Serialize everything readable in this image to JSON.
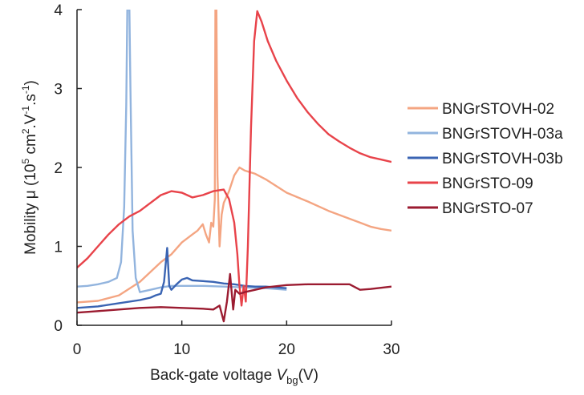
{
  "chart_data": {
    "type": "line",
    "xlabel_parts": {
      "main": "Back-gate voltage ",
      "var": "V",
      "sub": "bg",
      "unit": "(V)"
    },
    "ylabel_parts": {
      "main": "Mobility μ (10",
      "exp": "5",
      "mid": " cm",
      "exp2": "2",
      "mid2": ".V",
      "exp3": "-1",
      "mid3": ".s",
      "exp4": "-1",
      "end": ")"
    },
    "xlim": [
      0,
      30
    ],
    "ylim": [
      0,
      4
    ],
    "xticks": [
      0,
      10,
      20,
      30
    ],
    "yticks": [
      0,
      1,
      2,
      3,
      4
    ],
    "grid": false,
    "legend_position": "right",
    "series": [
      {
        "name": "BNGrSTOVH-02",
        "color": "#f4a582",
        "points": [
          [
            0,
            0.29
          ],
          [
            2,
            0.31
          ],
          [
            4,
            0.38
          ],
          [
            6,
            0.55
          ],
          [
            8,
            0.8
          ],
          [
            9,
            0.9
          ],
          [
            10,
            1.05
          ],
          [
            11,
            1.15
          ],
          [
            11.5,
            1.2
          ],
          [
            12,
            1.28
          ],
          [
            12.3,
            1.15
          ],
          [
            12.6,
            1.05
          ],
          [
            12.8,
            1.3
          ],
          [
            13.0,
            1.25
          ],
          [
            13.15,
            1.6
          ],
          [
            13.2,
            4.0
          ],
          [
            13.3,
            4.0
          ],
          [
            13.4,
            1.9
          ],
          [
            13.6,
            1.0
          ],
          [
            13.8,
            1.4
          ],
          [
            14,
            1.55
          ],
          [
            14.5,
            1.7
          ],
          [
            15,
            1.9
          ],
          [
            15.5,
            2.0
          ],
          [
            16,
            1.96
          ],
          [
            17,
            1.92
          ],
          [
            18,
            1.85
          ],
          [
            20,
            1.68
          ],
          [
            22,
            1.57
          ],
          [
            24,
            1.45
          ],
          [
            26,
            1.35
          ],
          [
            27,
            1.3
          ],
          [
            28,
            1.25
          ],
          [
            29,
            1.22
          ],
          [
            30,
            1.2
          ]
        ]
      },
      {
        "name": "BNGrSTOVH-03a",
        "color": "#92b4de",
        "points": [
          [
            0,
            0.49
          ],
          [
            1,
            0.5
          ],
          [
            2,
            0.52
          ],
          [
            3,
            0.55
          ],
          [
            3.8,
            0.6
          ],
          [
            4.2,
            0.8
          ],
          [
            4.5,
            1.5
          ],
          [
            4.7,
            2.8
          ],
          [
            4.8,
            4.0
          ],
          [
            5.0,
            4.0
          ],
          [
            5.1,
            3.0
          ],
          [
            5.3,
            1.2
          ],
          [
            5.6,
            0.6
          ],
          [
            6,
            0.42
          ],
          [
            7,
            0.45
          ],
          [
            8,
            0.48
          ],
          [
            9,
            0.5
          ],
          [
            10,
            0.5
          ],
          [
            12,
            0.5
          ],
          [
            14,
            0.49
          ],
          [
            16,
            0.48
          ],
          [
            18,
            0.47
          ],
          [
            20,
            0.45
          ]
        ]
      },
      {
        "name": "BNGrSTOVH-03b",
        "color": "#3a64b3",
        "points": [
          [
            0,
            0.22
          ],
          [
            2,
            0.24
          ],
          [
            4,
            0.28
          ],
          [
            6,
            0.32
          ],
          [
            7,
            0.35
          ],
          [
            7.5,
            0.38
          ],
          [
            8,
            0.4
          ],
          [
            8.3,
            0.55
          ],
          [
            8.6,
            0.98
          ],
          [
            8.8,
            0.5
          ],
          [
            9,
            0.45
          ],
          [
            9.5,
            0.52
          ],
          [
            10,
            0.58
          ],
          [
            10.5,
            0.6
          ],
          [
            11,
            0.57
          ],
          [
            12,
            0.56
          ],
          [
            13,
            0.55
          ],
          [
            14,
            0.53
          ],
          [
            15,
            0.52
          ],
          [
            16,
            0.5
          ],
          [
            17,
            0.49
          ],
          [
            18,
            0.49
          ],
          [
            19,
            0.48
          ],
          [
            20,
            0.47
          ]
        ]
      },
      {
        "name": "BNGrSTO-09",
        "color": "#e8434a",
        "points": [
          [
            0,
            0.73
          ],
          [
            1,
            0.85
          ],
          [
            2,
            1.0
          ],
          [
            3,
            1.15
          ],
          [
            4,
            1.28
          ],
          [
            5,
            1.38
          ],
          [
            6,
            1.45
          ],
          [
            7,
            1.55
          ],
          [
            8,
            1.65
          ],
          [
            9,
            1.7
          ],
          [
            10,
            1.68
          ],
          [
            11,
            1.62
          ],
          [
            12,
            1.65
          ],
          [
            13,
            1.7
          ],
          [
            14,
            1.72
          ],
          [
            14.5,
            1.6
          ],
          [
            15,
            1.3
          ],
          [
            15.3,
            0.9
          ],
          [
            15.5,
            0.5
          ],
          [
            15.7,
            0.25
          ],
          [
            15.9,
            0.5
          ],
          [
            16.1,
            0.3
          ],
          [
            16.3,
            1.0
          ],
          [
            16.6,
            2.5
          ],
          [
            16.9,
            3.6
          ],
          [
            17.2,
            3.98
          ],
          [
            17.6,
            3.85
          ],
          [
            18.2,
            3.6
          ],
          [
            19,
            3.35
          ],
          [
            20,
            3.1
          ],
          [
            21,
            2.88
          ],
          [
            22,
            2.7
          ],
          [
            23,
            2.55
          ],
          [
            24,
            2.42
          ],
          [
            25,
            2.33
          ],
          [
            26,
            2.25
          ],
          [
            27,
            2.18
          ],
          [
            28,
            2.13
          ],
          [
            29,
            2.1
          ],
          [
            30,
            2.07
          ]
        ]
      },
      {
        "name": "BNGrSTO-07",
        "color": "#9b1b30",
        "points": [
          [
            0,
            0.16
          ],
          [
            2,
            0.18
          ],
          [
            4,
            0.2
          ],
          [
            6,
            0.22
          ],
          [
            8,
            0.23
          ],
          [
            10,
            0.22
          ],
          [
            12,
            0.21
          ],
          [
            13,
            0.2
          ],
          [
            13.6,
            0.25
          ],
          [
            14,
            0.05
          ],
          [
            14.3,
            0.3
          ],
          [
            14.6,
            0.65
          ],
          [
            14.9,
            0.2
          ],
          [
            15.1,
            0.45
          ],
          [
            15.5,
            0.4
          ],
          [
            16,
            0.42
          ],
          [
            17,
            0.45
          ],
          [
            18,
            0.48
          ],
          [
            20,
            0.51
          ],
          [
            22,
            0.52
          ],
          [
            24,
            0.52
          ],
          [
            26,
            0.52
          ],
          [
            27,
            0.45
          ],
          [
            28,
            0.46
          ],
          [
            30,
            0.49
          ]
        ]
      }
    ]
  }
}
